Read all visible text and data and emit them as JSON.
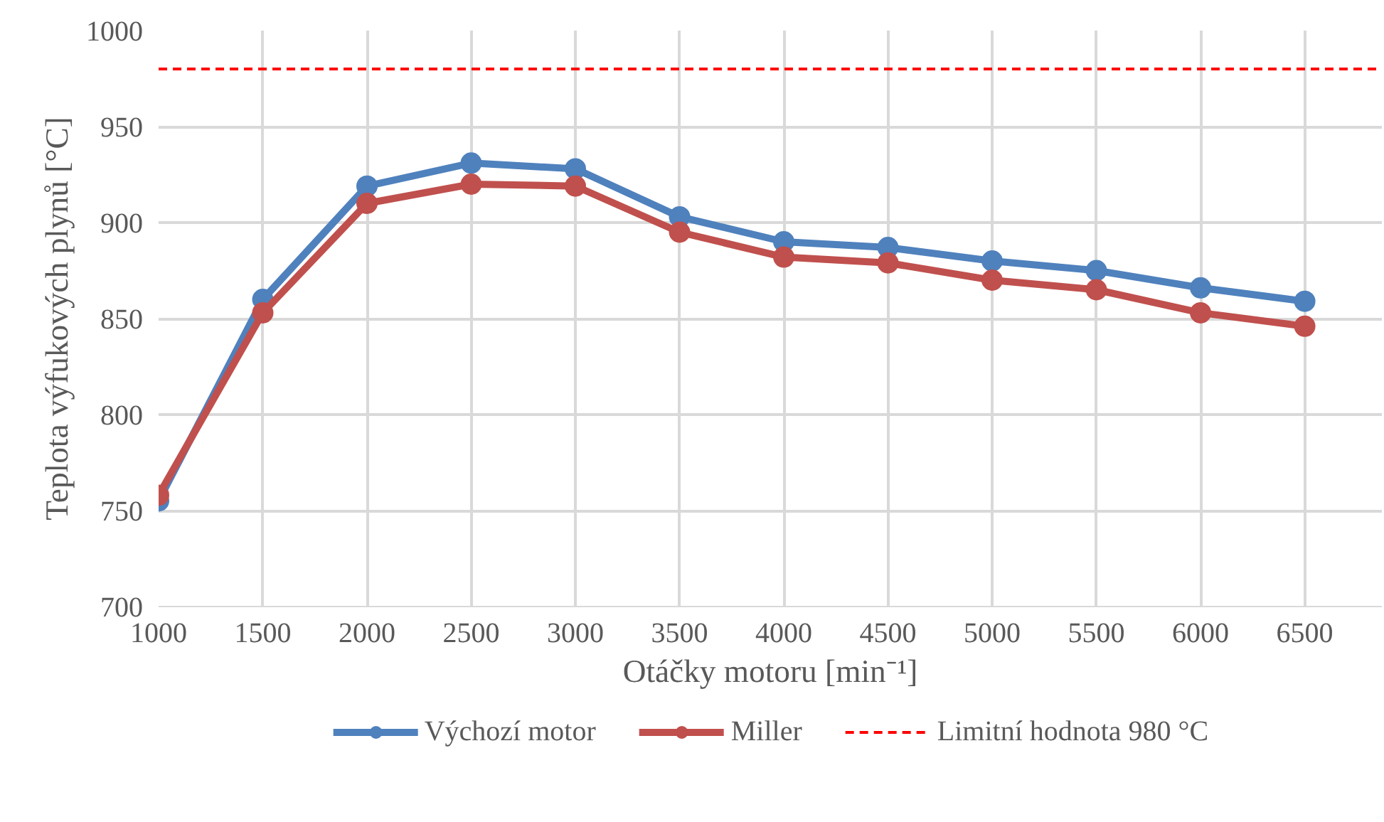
{
  "chart_data": {
    "type": "line",
    "xlabel": "Otáčky motoru [min⁻¹]",
    "ylabel": "Teplota výfukových plynů [°C]",
    "x": [
      1000,
      1500,
      2000,
      2500,
      3000,
      3500,
      4000,
      4500,
      5000,
      5500,
      6000,
      6500
    ],
    "series": [
      {
        "name": "Výchozí motor",
        "color": "#4f81bd",
        "values": [
          755,
          860,
          919,
          931,
          928,
          903,
          890,
          887,
          880,
          875,
          866,
          859
        ]
      },
      {
        "name": "Miller",
        "color": "#c0504d",
        "values": [
          758,
          853,
          910,
          920,
          919,
          895,
          882,
          879,
          870,
          865,
          853,
          846
        ]
      }
    ],
    "ref_lines": [
      {
        "axis": "y",
        "value": 980,
        "label": "Limitní hodnota 980 °C",
        "color": "#ff0000",
        "line_style": "dashed"
      }
    ],
    "xlim": [
      1000,
      6870
    ],
    "xticks": [
      1000,
      1500,
      2000,
      2500,
      3000,
      3500,
      4000,
      4500,
      5000,
      5500,
      6000,
      6500
    ],
    "ylim": [
      700,
      1000
    ],
    "yticks": [
      700,
      750,
      800,
      850,
      900,
      950,
      1000
    ],
    "grid": true,
    "legend": "bottom",
    "marker": "circle",
    "line_style": "solid"
  }
}
